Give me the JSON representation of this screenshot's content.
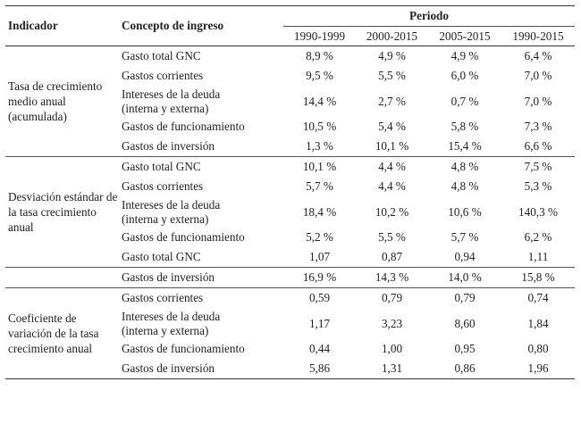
{
  "headers": {
    "indicador": "Indicador",
    "concepto": "Concepto de ingreso",
    "periodo": "Periodo",
    "periods": [
      "1990-1999",
      "2000-2015",
      "2005-2015",
      "1990-2015"
    ]
  },
  "groups": [
    {
      "indicator": "Tasa de crecimiento medio anual (acumulada)",
      "rows": [
        {
          "concept": "Gasto total GNC",
          "values": [
            "8,9 %",
            "4,9 %",
            "4,9 %",
            "6,4 %"
          ]
        },
        {
          "concept": "Gastos corrientes",
          "values": [
            "9,5 %",
            "5,5 %",
            "6,0 %",
            "7,0 %"
          ]
        },
        {
          "concept": "Intereses de la deuda (interna y externa)",
          "values": [
            "14,4 %",
            "2,7 %",
            "0,7 %",
            "7,0 %"
          ]
        },
        {
          "concept": "Gastos de funcionamiento",
          "values": [
            "10,5 %",
            "5,4 %",
            "5,8 %",
            "7,3 %"
          ]
        },
        {
          "concept": "Gastos de inversión",
          "values": [
            "1,3 %",
            "10,1 %",
            "15,4 %",
            "6,6 %"
          ]
        }
      ]
    },
    {
      "indicator": "Desviación estándar de la tasa crecimiento anual",
      "rows": [
        {
          "concept": "Gasto total GNC",
          "values": [
            "10,1 %",
            "4,4 %",
            "4,8 %",
            "7,5 %"
          ]
        },
        {
          "concept": "Gastos corrientes",
          "values": [
            "5,7 %",
            "4,4 %",
            "4,8 %",
            "5,3 %"
          ]
        },
        {
          "concept": "Intereses de la deuda (interna y externa)",
          "values": [
            "18,4 %",
            "10,2 %",
            "10,6 %",
            "140,3 %"
          ]
        },
        {
          "concept": "Gastos de funcionamiento",
          "values": [
            "5,2 %",
            "5,5 %",
            "5,7 %",
            "6,2 %"
          ]
        },
        {
          "concept": "Gasto total GNC",
          "values": [
            "1,07",
            "0,87",
            "0,94",
            "1,11"
          ]
        }
      ]
    },
    {
      "indicator": "",
      "rows": [
        {
          "concept": "Gastos de inversión",
          "values": [
            "16,9 %",
            "14,3 %",
            "14,0 %",
            "15,8 %"
          ]
        }
      ]
    },
    {
      "indicator": "Coeficiente de variación de la tasa crecimiento anual",
      "rows": [
        {
          "concept": "Gastos corrientes",
          "values": [
            "0,59",
            "0,79",
            "0,79",
            "0,74"
          ]
        },
        {
          "concept": "Intereses de la deuda (interna y externa)",
          "values": [
            "1,17",
            "3,23",
            "8,60",
            "1,84"
          ]
        },
        {
          "concept": "Gastos de funcionamiento",
          "values": [
            "0,44",
            "1,00",
            "0,95",
            "0,80"
          ]
        },
        {
          "concept": "Gastos de inversión",
          "values": [
            "5,86",
            "1,31",
            "0,86",
            "1,96"
          ]
        }
      ]
    }
  ]
}
